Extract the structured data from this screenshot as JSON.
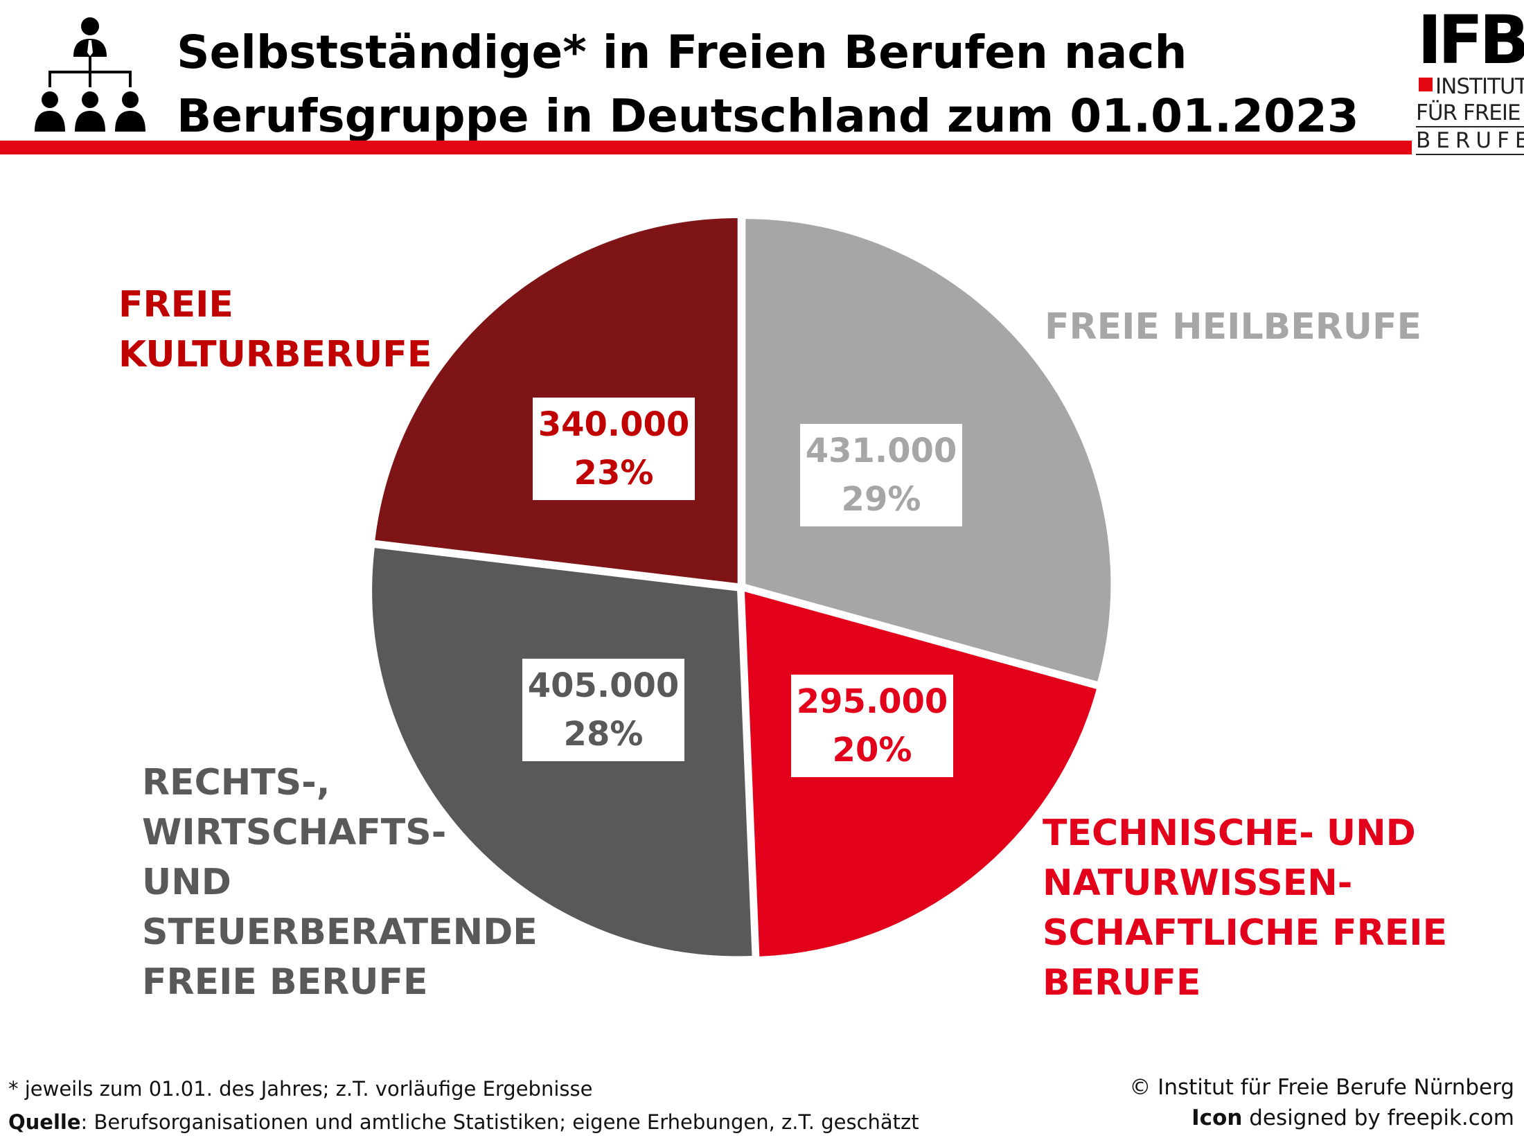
{
  "header": {
    "title_line1": "Selbstständige* in Freien Berufen nach",
    "title_line2": "Berufsgruppe in Deutschland zum 01.01.2023",
    "accent_color": "#e30613",
    "icon": "organization-chart-icon"
  },
  "logo": {
    "mark": "IFB",
    "line1": "INSTITUT",
    "line2": "FÜR FREIE",
    "line3": "BERUFE"
  },
  "chart_data": {
    "type": "pie",
    "title": "Selbstständige* in Freien Berufen nach Berufsgruppe in Deutschland zum 01.01.2023",
    "start": "12 o'clock, clockwise",
    "slices": [
      {
        "label": "FREIE HEILBERUFE",
        "value": 431000,
        "value_label": "431.000",
        "percent_label": "29%",
        "color": "#a6a6a6",
        "label_color": "#a6a6a6"
      },
      {
        "label": "TECHNISCHE- UND\nNATURWISSEN-\nSCHAFTLICHE FREIE\nBERUFE",
        "value": 295000,
        "value_label": "295.000",
        "percent_label": "20%",
        "color": "#e2001a",
        "label_color": "#e2001a"
      },
      {
        "label": "RECHTS-,\nWIRTSCHAFTS-\nUND\nSTEUERBERATENDE\nFREIE BERUFE",
        "value": 405000,
        "value_label": "405.000",
        "percent_label": "28%",
        "color": "#595959",
        "label_color": "#595959"
      },
      {
        "label": "FREIE\nKULTURBERUFE",
        "value": 340000,
        "value_label": "340.000",
        "percent_label": "23%",
        "color": "#7f1416",
        "label_color": "#c00000"
      }
    ]
  },
  "footer": {
    "note": "* jeweils zum 01.01. des Jahres; z.T. vorläufige Ergebnisse",
    "source_label": "Quelle",
    "source_text": ": Berufsorganisationen und amtliche Statistiken; eigene Erhebungen, z.T. geschätzt",
    "copyright": "© Institut für Freie Berufe Nürnberg",
    "icon_label": "Icon",
    "icon_credit": " designed by freepik.com"
  }
}
